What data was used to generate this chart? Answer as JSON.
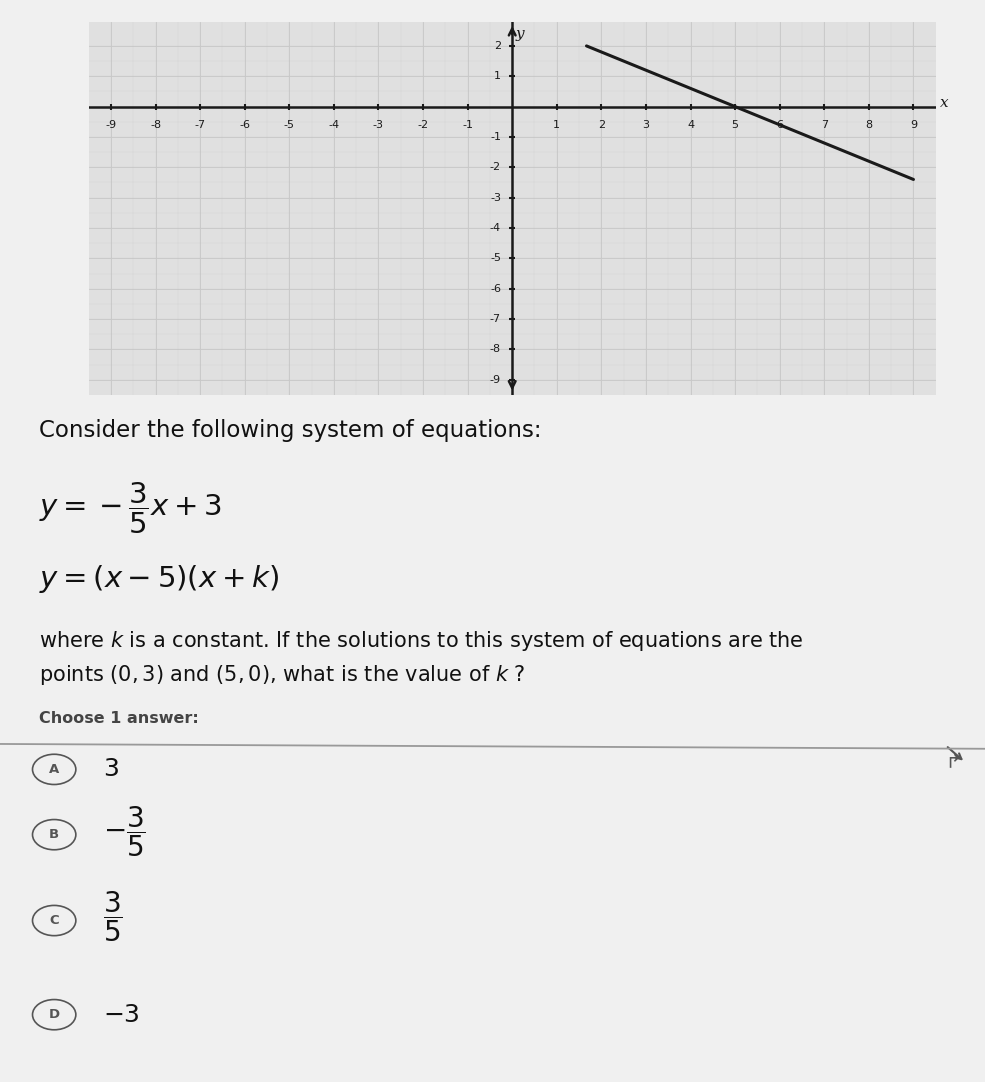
{
  "graph": {
    "x_min": -9,
    "x_max": 9,
    "y_min": -9,
    "y_max": 2,
    "grid_color": "#c8c8c8",
    "axis_color": "#1a1a1a",
    "line_color": "#1a1a1a",
    "bg_color": "#e0e0e0"
  },
  "page_bg": "#f0f0f0",
  "text_color": "#111111",
  "subtext_color": "#444444",
  "circle_color": "#555555",
  "sep_color": "#aaaaaa",
  "consider_text": "Consider the following system of equations:",
  "eq1": "$y = -\\dfrac{3}{5}x + 3$",
  "eq2": "$y = (x - 5)(x + k)$",
  "where_line1": "where $k$ is a constant. If the solutions to this system of equations are the",
  "where_line2": "points $(0, 3)$ and $(5, 0)$, what is the value of $k$ ?",
  "choose_label": "Choose 1 answer:",
  "answers": [
    {
      "letter": "A",
      "label": "3",
      "is_frac": false
    },
    {
      "letter": "B",
      "label": "-\\frac{3}{5}",
      "is_frac": true,
      "numer": "3",
      "denom": "5",
      "sign": "-"
    },
    {
      "letter": "C",
      "label": "\\frac{3}{5}",
      "is_frac": true,
      "numer": "3",
      "denom": "5",
      "sign": ""
    },
    {
      "letter": "D",
      "label": "-3",
      "is_frac": false
    }
  ]
}
